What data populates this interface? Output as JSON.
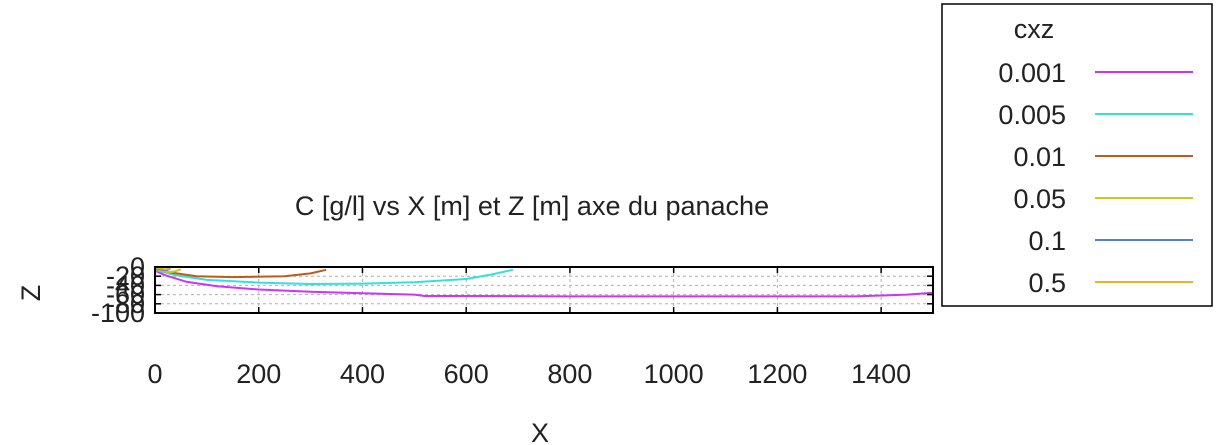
{
  "chart_data": {
    "type": "line",
    "title": "C [g/l] vs X [m] et Z [m] axe du panache",
    "xlabel": "X",
    "ylabel": "Z",
    "xlim": [
      0,
      1500
    ],
    "ylim": [
      -100,
      0
    ],
    "x_ticks": [
      "0",
      "200",
      "400",
      "600",
      "800",
      "1000",
      "1200",
      "1400"
    ],
    "x_tick_values": [
      0,
      200,
      400,
      600,
      800,
      1000,
      1200,
      1400
    ],
    "y_ticks": [
      "0",
      "-20",
      "-40",
      "-60",
      "-80",
      "-100"
    ],
    "y_tick_values": [
      0,
      -20,
      -40,
      -60,
      -80,
      -100
    ],
    "grid": true,
    "legend": {
      "title": "cxz",
      "position": "outside-top-right"
    },
    "series": [
      {
        "name": "0.001",
        "color": "#cc33ff",
        "x": [
          0,
          20,
          60,
          120,
          200,
          300,
          400,
          500,
          520,
          600,
          800,
          1000,
          1200,
          1350,
          1400,
          1450,
          1500
        ],
        "y": [
          -8,
          -18,
          -32,
          -42,
          -49,
          -54,
          -57,
          -60,
          -63,
          -63,
          -64,
          -64,
          -64,
          -64,
          -62,
          -60,
          -56
        ]
      },
      {
        "name": "0.005",
        "color": "#33e0e0",
        "x": [
          0,
          40,
          100,
          200,
          300,
          400,
          500,
          600,
          650,
          690
        ],
        "y": [
          -6,
          -18,
          -28,
          -34,
          -37,
          -36,
          -33,
          -26,
          -16,
          -6
        ]
      },
      {
        "name": "0.01",
        "color": "#c05a1a",
        "x": [
          0,
          30,
          80,
          150,
          250,
          300,
          330
        ],
        "y": [
          -4,
          -12,
          -20,
          -22,
          -20,
          -14,
          -6
        ]
      },
      {
        "name": "0.05",
        "color": "#c8c81e",
        "x": [
          0,
          10,
          20,
          30,
          40,
          50
        ],
        "y": [
          -2,
          -7,
          -10,
          -11,
          -9,
          -5
        ]
      },
      {
        "name": "0.1",
        "color": "#4f81e0",
        "x": [
          0,
          10,
          20,
          30
        ],
        "y": [
          -2,
          -5,
          -7,
          -4
        ]
      },
      {
        "name": "0.5",
        "color": "#f0b020",
        "x": [
          0,
          10,
          20,
          30
        ],
        "y": [
          -1,
          -3,
          -5,
          -3
        ]
      }
    ]
  }
}
